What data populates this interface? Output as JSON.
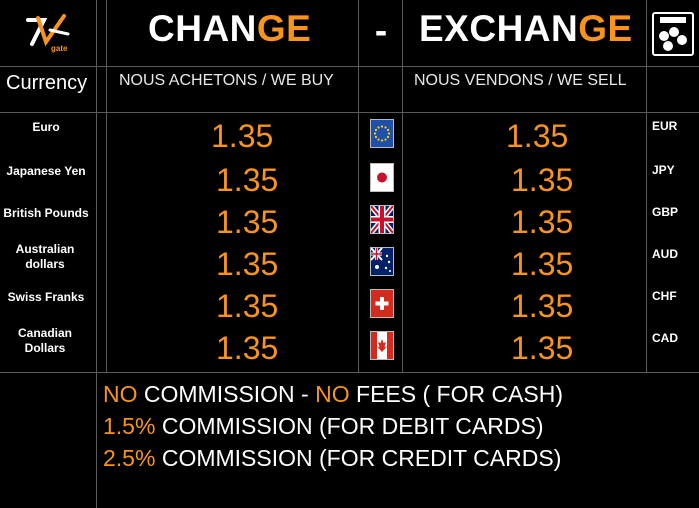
{
  "header": {
    "logo_text": "gate",
    "title_left_white": "CHAN",
    "title_left_orange": "GE",
    "separator": "-",
    "title_right_white": "EXCHAN",
    "title_right_orange": "GE",
    "currency_icon": "coins-icon"
  },
  "columns": {
    "currency": "Currency",
    "buy": "NOUS ACHETONS / WE BUY",
    "sell": "NOUS VENDONS / WE SELL"
  },
  "rows": [
    {
      "name": "Euro",
      "buy": "1.35",
      "sell": "1.35",
      "code": "EUR",
      "flag": "eu-flag-icon"
    },
    {
      "name": "Japanese Yen",
      "buy": "1.35",
      "sell": "1.35",
      "code": "JPY",
      "flag": "japan-flag-icon"
    },
    {
      "name": "British Pounds",
      "buy": "1.35",
      "sell": "1.35",
      "code": "GBP",
      "flag": "uk-flag-icon"
    },
    {
      "name": "Australian dollars",
      "buy": "1.35",
      "sell": "1.35",
      "code": "AUD",
      "flag": "australia-flag-icon"
    },
    {
      "name": "Swiss Franks",
      "buy": "1.35",
      "sell": "1.35",
      "code": "CHF",
      "flag": "swiss-flag-icon"
    },
    {
      "name": "Canadian Dollars",
      "buy": "1.35",
      "sell": "1.35",
      "code": "CAD",
      "flag": "canada-flag-icon"
    }
  ],
  "footer": {
    "line1_a": "NO",
    "line1_b": " COMMISSION - ",
    "line1_c": "NO",
    "line1_d": " FEES  ( FOR CASH)",
    "line2_a": "1.5%",
    "line2_b": " COMMISSION (FOR DEBIT CARDS)",
    "line3_a": "2.5%",
    "line3_b": " COMMISSION (FOR CREDIT CARDS)"
  },
  "colors": {
    "accent": "#f7941d",
    "background": "#000000",
    "lines": "#5a5a5a"
  }
}
